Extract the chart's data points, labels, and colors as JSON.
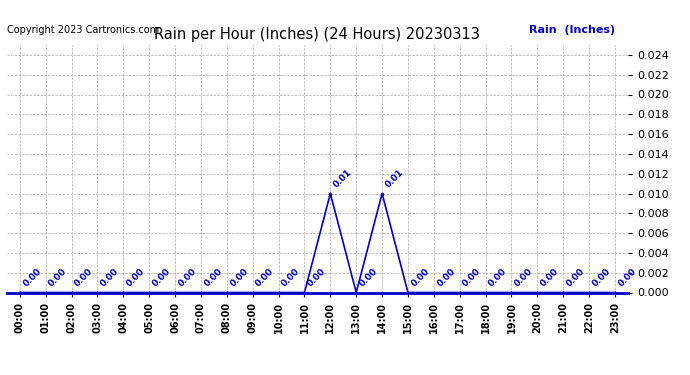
{
  "title": "Rain per Hour (Inches) (24 Hours) 20230313",
  "copyright_text": "Copyright 2023 Cartronics.com",
  "legend_label": "Rain  (Inches)",
  "x_labels": [
    "00:00",
    "01:00",
    "02:00",
    "03:00",
    "04:00",
    "05:00",
    "06:00",
    "07:00",
    "08:00",
    "09:00",
    "10:00",
    "11:00",
    "12:00",
    "13:00",
    "14:00",
    "15:00",
    "16:00",
    "17:00",
    "18:00",
    "19:00",
    "20:00",
    "21:00",
    "22:00",
    "23:00"
  ],
  "hours": [
    0,
    1,
    2,
    3,
    4,
    5,
    6,
    7,
    8,
    9,
    10,
    11,
    12,
    13,
    14,
    15,
    16,
    17,
    18,
    19,
    20,
    21,
    22,
    23
  ],
  "values": [
    0.0,
    0.0,
    0.0,
    0.0,
    0.0,
    0.0,
    0.0,
    0.0,
    0.0,
    0.0,
    0.0,
    0.0,
    0.01,
    0.0,
    0.01,
    0.0,
    0.0,
    0.0,
    0.0,
    0.0,
    0.0,
    0.0,
    0.0,
    0.0
  ],
  "line_color": "#0000cc",
  "marker_color": "#0000cc",
  "label_color": "#0000cc",
  "title_color": "#000000",
  "copyright_color": "#000000",
  "legend_color": "#0000cc",
  "background_color": "#ffffff",
  "grid_color": "#aaaaaa",
  "ylim": [
    0.0,
    0.025
  ],
  "yticks": [
    0.0,
    0.002,
    0.004,
    0.006,
    0.008,
    0.01,
    0.012,
    0.014,
    0.016,
    0.018,
    0.02,
    0.022,
    0.024
  ],
  "figsize": [
    6.9,
    3.75
  ],
  "dpi": 100
}
